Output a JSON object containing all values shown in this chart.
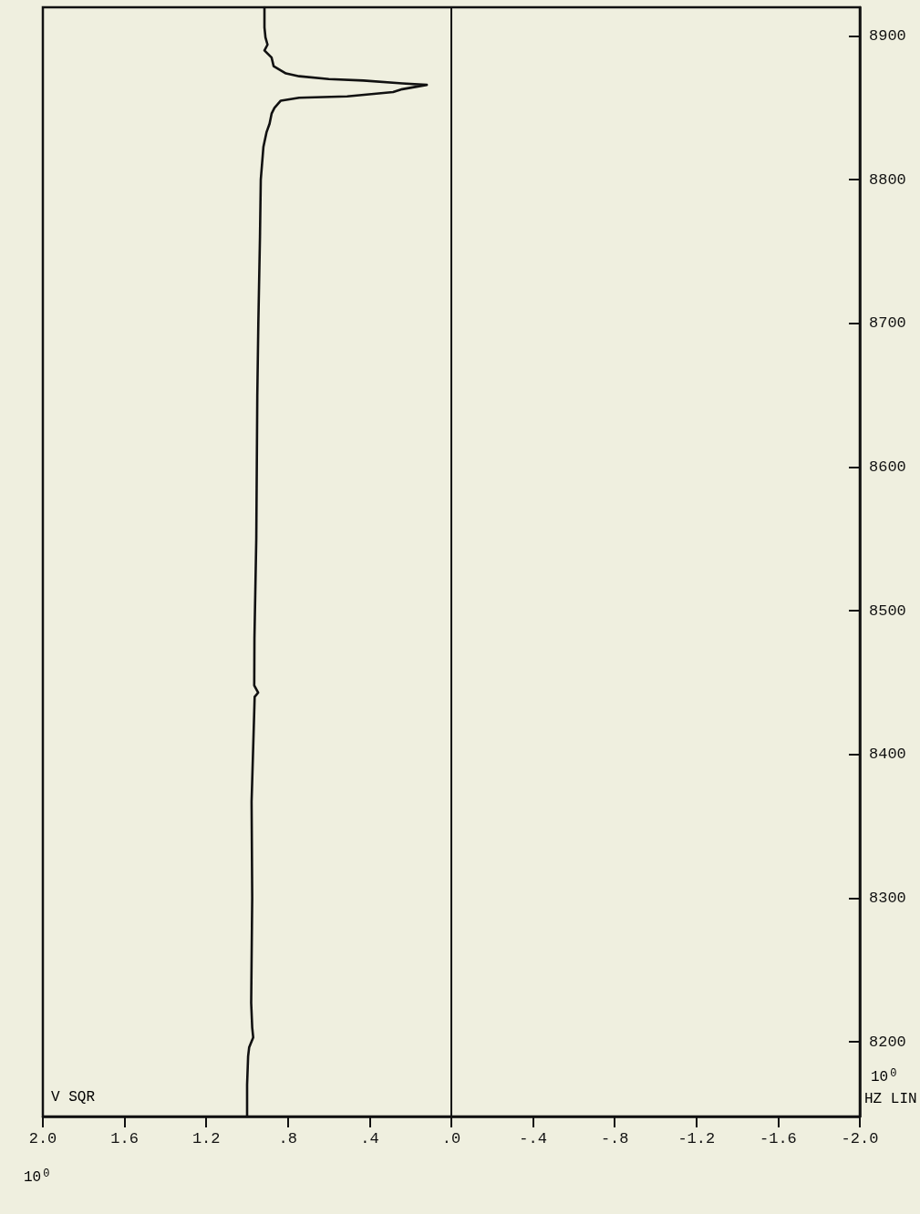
{
  "chart_data": {
    "type": "line",
    "xlabel": "V SQR",
    "ylabel": "HZ LIN",
    "annotations": [
      "10$^{0}$",
      "10$^{0}$"
    ],
    "x": [
      1.0,
      1.0,
      0.995,
      0.99,
      0.97,
      0.975,
      0.98,
      0.975,
      0.978,
      0.965,
      0.963,
      0.946,
      0.965,
      0.964,
      0.955,
      0.95,
      0.945,
      0.937,
      0.933,
      0.92,
      0.905,
      0.89,
      0.88,
      0.866,
      0.835,
      0.745,
      0.51,
      0.285,
      0.24,
      0.12,
      0.24,
      0.43,
      0.6,
      0.745,
      0.81,
      0.87,
      0.88,
      0.915,
      0.9,
      0.91,
      0.915,
      0.915
    ],
    "series": [
      {
        "color": "#111111",
        "values": [
          8148,
          8170,
          8190,
          8196,
          8203,
          8210,
          8227,
          8300,
          8367,
          8430,
          8440,
          8443,
          8448,
          8481,
          8550,
          8650,
          8700,
          8760,
          8800,
          8823,
          8833,
          8839,
          8846,
          8850,
          8855,
          8857,
          8858,
          8861,
          8863,
          8866,
          8867,
          8869,
          8870,
          8872,
          8874,
          8879,
          8885,
          8890,
          8894,
          8899,
          8906,
          8920
        ]
      }
    ],
    "ylim": [
      8148,
      8920
    ],
    "yticks": [
      8200,
      8300,
      8400,
      8500,
      8600,
      8700,
      8800,
      8900
    ],
    "xlim": [
      2,
      -2
    ],
    "xticks": [
      {
        "value": 2,
        "label": "2.0"
      },
      {
        "value": 1.6,
        "label": "1.6"
      },
      {
        "value": 1.2,
        "label": "1.2"
      },
      {
        "value": 0.8,
        "label": ".8"
      },
      {
        "value": 0.4,
        "label": ".4"
      },
      {
        "value": 0,
        "label": ".0"
      },
      {
        "value": -0.4,
        "label": "-.4"
      },
      {
        "value": -0.8,
        "label": "-.8"
      },
      {
        "value": -1.2,
        "label": "-1.2"
      },
      {
        "value": -1.6,
        "label": "-1.6"
      },
      {
        "value": -2,
        "label": "-2.0"
      }
    ],
    "ref_lines": [
      {
        "axis": "x",
        "value": 0,
        "color": "#111111"
      }
    ],
    "grid": false,
    "marker": "none",
    "line_style": "solid"
  }
}
